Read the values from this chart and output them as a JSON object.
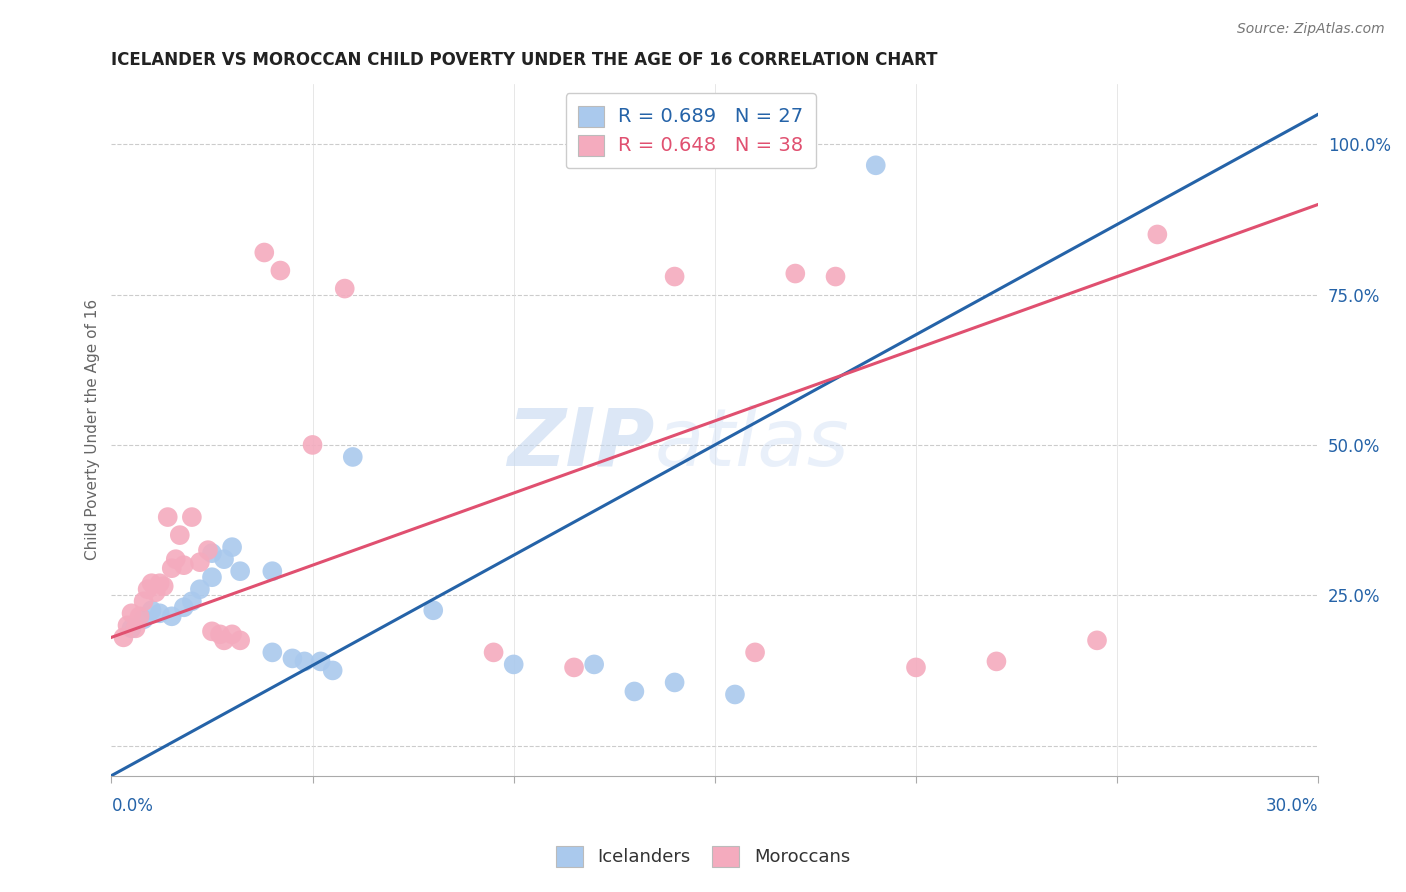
{
  "title": "ICELANDER VS MOROCCAN CHILD POVERTY UNDER THE AGE OF 16 CORRELATION CHART",
  "source": "Source: ZipAtlas.com",
  "ylabel": "Child Poverty Under the Age of 16",
  "xlim": [
    0.0,
    30.0
  ],
  "ylim": [
    -5.0,
    110.0
  ],
  "yticks": [
    0.0,
    25.0,
    50.0,
    75.0,
    100.0
  ],
  "ytick_labels": [
    "",
    "25.0%",
    "50.0%",
    "75.0%",
    "100.0%"
  ],
  "watermark_zip": "ZIP",
  "watermark_atlas": "atlas",
  "legend_r_blue": "R = 0.689",
  "legend_n_blue": "N = 27",
  "legend_r_pink": "R = 0.648",
  "legend_n_pink": "N = 38",
  "blue_color": "#aac9ed",
  "pink_color": "#f4abbe",
  "blue_line_color": "#2563a8",
  "pink_line_color": "#e05070",
  "blue_scatter": [
    [
      0.5,
      19.5
    ],
    [
      0.8,
      21.0
    ],
    [
      1.0,
      22.5
    ],
    [
      1.2,
      22.0
    ],
    [
      1.5,
      21.5
    ],
    [
      1.8,
      23.0
    ],
    [
      2.0,
      24.0
    ],
    [
      2.2,
      26.0
    ],
    [
      2.5,
      28.0
    ],
    [
      2.5,
      32.0
    ],
    [
      2.8,
      31.0
    ],
    [
      3.0,
      33.0
    ],
    [
      3.2,
      29.0
    ],
    [
      4.0,
      29.0
    ],
    [
      4.0,
      15.5
    ],
    [
      4.5,
      14.5
    ],
    [
      4.8,
      14.0
    ],
    [
      5.2,
      14.0
    ],
    [
      5.5,
      12.5
    ],
    [
      6.0,
      48.0
    ],
    [
      8.0,
      22.5
    ],
    [
      10.0,
      13.5
    ],
    [
      12.0,
      13.5
    ],
    [
      13.0,
      9.0
    ],
    [
      14.0,
      10.5
    ],
    [
      15.5,
      8.5
    ],
    [
      19.0,
      96.5
    ]
  ],
  "pink_scatter": [
    [
      0.3,
      18.0
    ],
    [
      0.4,
      20.0
    ],
    [
      0.5,
      22.0
    ],
    [
      0.6,
      19.5
    ],
    [
      0.7,
      21.5
    ],
    [
      0.8,
      24.0
    ],
    [
      0.9,
      26.0
    ],
    [
      1.0,
      27.0
    ],
    [
      1.1,
      25.5
    ],
    [
      1.2,
      27.0
    ],
    [
      1.3,
      26.5
    ],
    [
      1.4,
      38.0
    ],
    [
      1.5,
      29.5
    ],
    [
      1.6,
      31.0
    ],
    [
      1.7,
      35.0
    ],
    [
      1.8,
      30.0
    ],
    [
      2.0,
      38.0
    ],
    [
      2.2,
      30.5
    ],
    [
      2.4,
      32.5
    ],
    [
      2.5,
      19.0
    ],
    [
      2.7,
      18.5
    ],
    [
      2.8,
      17.5
    ],
    [
      3.0,
      18.5
    ],
    [
      3.2,
      17.5
    ],
    [
      3.8,
      82.0
    ],
    [
      4.2,
      79.0
    ],
    [
      5.0,
      50.0
    ],
    [
      5.8,
      76.0
    ],
    [
      9.5,
      15.5
    ],
    [
      11.5,
      13.0
    ],
    [
      14.0,
      78.0
    ],
    [
      16.0,
      15.5
    ],
    [
      17.0,
      78.5
    ],
    [
      18.0,
      78.0
    ],
    [
      20.0,
      13.0
    ],
    [
      22.0,
      14.0
    ],
    [
      24.5,
      17.5
    ],
    [
      26.0,
      85.0
    ]
  ],
  "blue_line": {
    "x0": 0.0,
    "y0": -5.0,
    "x1": 30.0,
    "y1": 105.0
  },
  "pink_line": {
    "x0": 0.0,
    "y0": 18.0,
    "x1": 30.0,
    "y1": 90.0
  }
}
